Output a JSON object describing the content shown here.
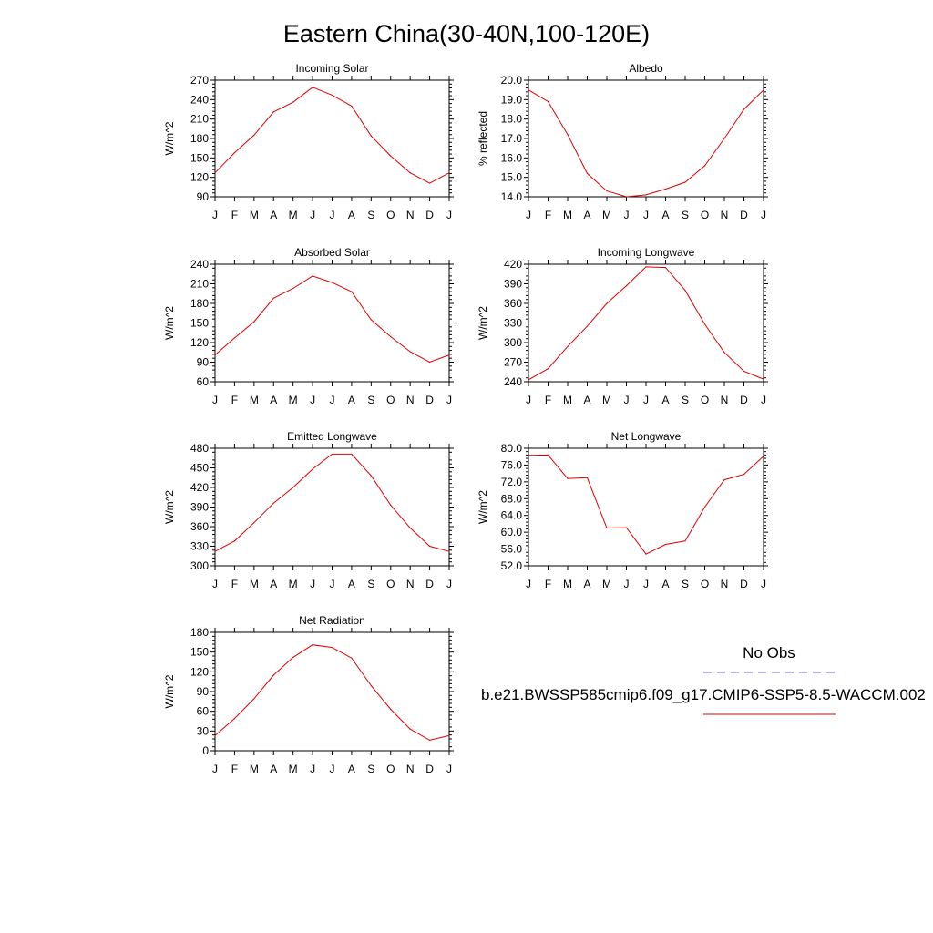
{
  "figure": {
    "title": "Eastern China(30-40N,100-120E)",
    "colors": {
      "model_line": "#e00000",
      "obs_line": "#6a6ad8",
      "axis": "#000000"
    }
  },
  "legend": {
    "obs_label": "No Obs",
    "model_label": "b.e21.BWSSP585cmip6.f09_g17.CMIP6-SSP5-8.5-WACCM.002"
  },
  "chart_data": [
    {
      "type": "line",
      "title": "Incoming Solar",
      "ylabel": "W/m^2",
      "x": [
        "J",
        "F",
        "M",
        "A",
        "M",
        "J",
        "J",
        "A",
        "S",
        "O",
        "N",
        "D",
        "J"
      ],
      "ylim": [
        90,
        270
      ],
      "yticks": [
        "90",
        "120",
        "150",
        "180",
        "210",
        "240",
        "270"
      ],
      "series": [
        {
          "values": [
            127,
            158,
            185,
            221,
            236,
            259,
            247,
            230,
            184,
            153,
            127,
            111,
            127
          ]
        }
      ]
    },
    {
      "type": "line",
      "title": "Albedo",
      "ylabel": "% reflected",
      "x": [
        "J",
        "F",
        "M",
        "A",
        "M",
        "J",
        "J",
        "A",
        "S",
        "O",
        "N",
        "D",
        "J"
      ],
      "ylim": [
        14.0,
        20.0
      ],
      "yticks": [
        "14.0",
        "15.0",
        "16.0",
        "17.0",
        "18.0",
        "19.0",
        "20.0"
      ],
      "series": [
        {
          "values": [
            19.5,
            18.9,
            17.2,
            15.2,
            14.3,
            14.0,
            14.1,
            14.4,
            14.75,
            15.6,
            17.0,
            18.5,
            19.5
          ]
        }
      ]
    },
    {
      "type": "line",
      "title": "Absorbed Solar",
      "ylabel": "W/m^2",
      "x": [
        "J",
        "F",
        "M",
        "A",
        "M",
        "J",
        "J",
        "A",
        "S",
        "O",
        "N",
        "D",
        "J"
      ],
      "ylim": [
        60,
        240
      ],
      "yticks": [
        "60",
        "90",
        "120",
        "150",
        "180",
        "210",
        "240"
      ],
      "series": [
        {
          "values": [
            101,
            127,
            152,
            188,
            203,
            222,
            212,
            198,
            155,
            129,
            106,
            90,
            101
          ]
        }
      ]
    },
    {
      "type": "line",
      "title": "Incoming Longwave",
      "ylabel": "W/m^2",
      "x": [
        "J",
        "F",
        "M",
        "A",
        "M",
        "J",
        "J",
        "A",
        "S",
        "O",
        "N",
        "D",
        "J"
      ],
      "ylim": [
        240,
        420
      ],
      "yticks": [
        "240",
        "270",
        "300",
        "330",
        "360",
        "390",
        "420"
      ],
      "series": [
        {
          "values": [
            243,
            260,
            294,
            325,
            360,
            387,
            416,
            415,
            380,
            328,
            285,
            256,
            244
          ]
        }
      ]
    },
    {
      "type": "line",
      "title": "Emitted Longwave",
      "ylabel": "W/m^2",
      "x": [
        "J",
        "F",
        "M",
        "A",
        "M",
        "J",
        "J",
        "A",
        "S",
        "O",
        "N",
        "D",
        "J"
      ],
      "ylim": [
        300,
        480
      ],
      "yticks": [
        "300",
        "330",
        "360",
        "390",
        "420",
        "450",
        "480"
      ],
      "series": [
        {
          "values": [
            322,
            338,
            366,
            396,
            420,
            448,
            471,
            471,
            438,
            393,
            358,
            330,
            322
          ]
        }
      ]
    },
    {
      "type": "line",
      "title": "Net Longwave",
      "ylabel": "W/m^2",
      "x": [
        "J",
        "F",
        "M",
        "A",
        "M",
        "J",
        "J",
        "A",
        "S",
        "O",
        "N",
        "D",
        "J"
      ],
      "ylim": [
        52.0,
        80.0
      ],
      "yticks": [
        "52.0",
        "56.0",
        "60.0",
        "64.0",
        "68.0",
        "72.0",
        "76.0",
        "80.0"
      ],
      "series": [
        {
          "values": [
            78.3,
            78.4,
            72.8,
            73.0,
            61.0,
            61.1,
            54.8,
            57.1,
            57.9,
            66.0,
            72.5,
            73.8,
            78.1
          ]
        }
      ]
    },
    {
      "type": "line",
      "title": "Net Radiation",
      "ylabel": "W/m^2",
      "x": [
        "J",
        "F",
        "M",
        "A",
        "M",
        "J",
        "J",
        "A",
        "S",
        "O",
        "N",
        "D",
        "J"
      ],
      "ylim": [
        0,
        180
      ],
      "yticks": [
        "0",
        "30",
        "60",
        "90",
        "120",
        "150",
        "180"
      ],
      "series": [
        {
          "values": [
            23,
            49,
            79,
            115,
            142,
            161,
            157,
            141,
            99,
            63,
            33,
            16,
            23
          ]
        }
      ]
    }
  ]
}
